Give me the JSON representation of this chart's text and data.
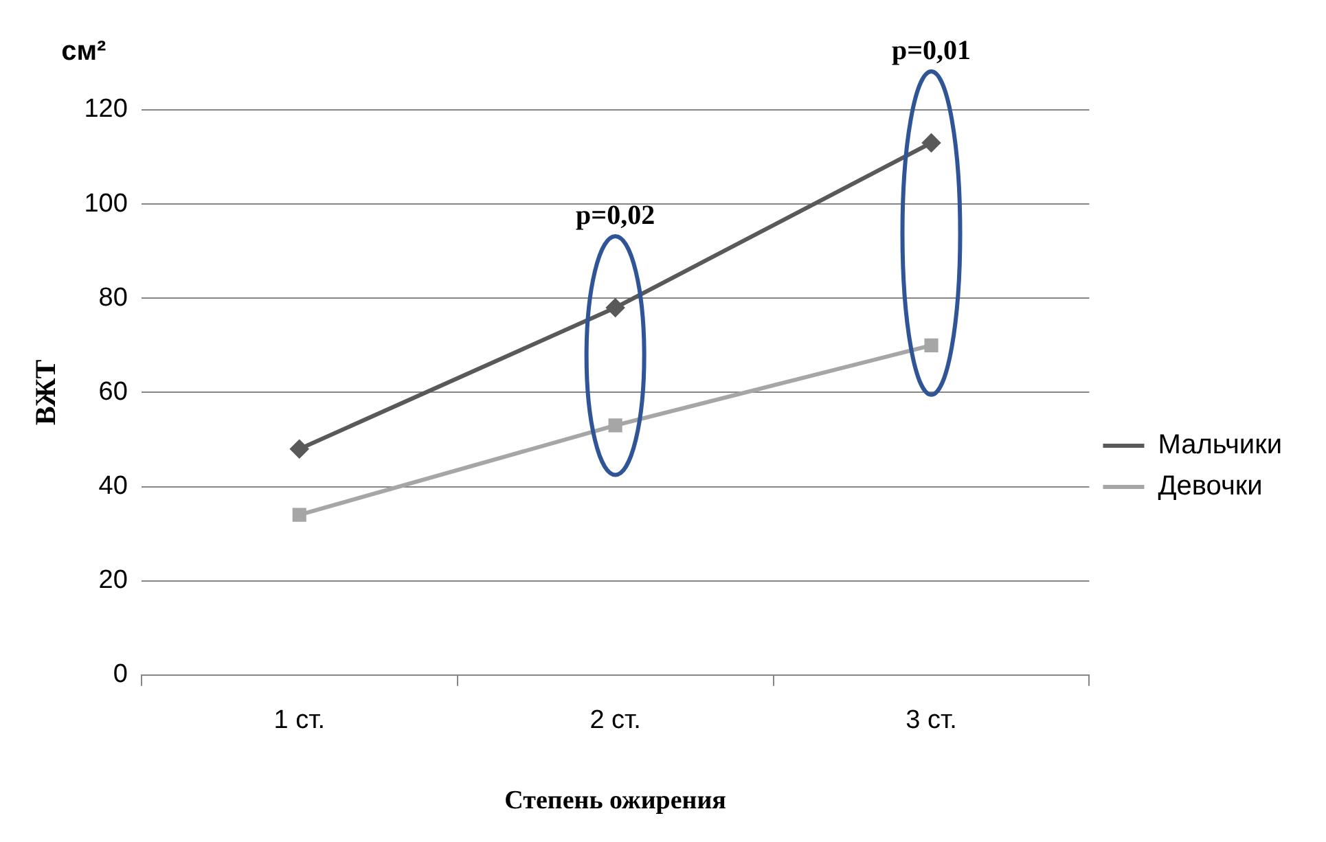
{
  "chart_data": {
    "type": "line",
    "xlabel": "Степень ожирения",
    "ylabel": "ВЖТ",
    "categories": [
      "1 ст.",
      "2 ст.",
      "3 ст."
    ],
    "series": [
      {
        "name": "Мальчики",
        "color": "#595959",
        "marker": "diamond",
        "values": [
          48,
          78,
          113
        ]
      },
      {
        "name": "Девочки",
        "color": "#a6a6a6",
        "marker": "square",
        "values": [
          34,
          53,
          70
        ]
      }
    ],
    "ylim": [
      0,
      120
    ],
    "yticks": [
      0,
      20,
      40,
      60,
      80,
      100,
      120
    ],
    "grid": "y",
    "legend": "right",
    "annotations": [
      "см²",
      "p=0,02",
      "p=0,01"
    ]
  }
}
